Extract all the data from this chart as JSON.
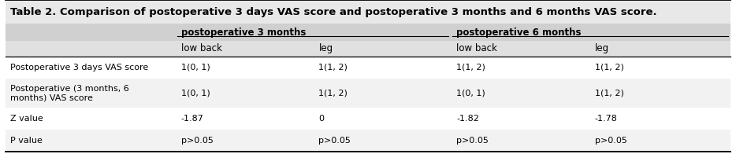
{
  "title": "Table 2. Comparison of postoperative 3 days VAS score and postoperative 3 months and 6 months VAS score.",
  "col_group_labels": [
    "postoperative 3 months",
    "postoperative 6 months"
  ],
  "sub_headers": [
    "low back",
    "leg",
    "low back",
    "leg"
  ],
  "row_labels": [
    "Postoperative 3 days VAS score",
    "Postoperative (3 months, 6\nmonths) VAS score",
    "Z value",
    "P value"
  ],
  "data": [
    [
      "1(0, 1)",
      "1(1, 2)",
      "1(1, 2)",
      "1(1, 2)"
    ],
    [
      "1(0, 1)",
      "1(1, 2)",
      "1(0, 1)",
      "1(1, 2)"
    ],
    [
      "-1.87",
      "0",
      "-1.82",
      "-1.78"
    ],
    [
      "p>0.05",
      "p>0.05",
      "p>0.05",
      "p>0.05"
    ]
  ],
  "bg_title": "#e8e8e8",
  "bg_header1": "#d0d0d0",
  "bg_header2": "#e0e0e0",
  "bg_white": "#ffffff",
  "bg_light": "#f2f2f2",
  "text_color": "#000000",
  "title_fontsize": 9.5,
  "header_fontsize": 8.5,
  "data_fontsize": 8.0,
  "figsize": [
    9.34,
    2.1
  ],
  "dpi": 100
}
